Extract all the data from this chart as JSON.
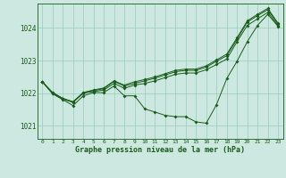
{
  "title": "Graphe pression niveau de la mer (hPa)",
  "background_color": "#cce8e0",
  "grid_color": "#99ccbb",
  "line_color": "#1a5c1a",
  "xlim": [
    -0.5,
    23.5
  ],
  "ylim": [
    1020.6,
    1024.75
  ],
  "yticks": [
    1021,
    1022,
    1023,
    1024
  ],
  "xticks": [
    0,
    1,
    2,
    3,
    4,
    5,
    6,
    7,
    8,
    9,
    10,
    11,
    12,
    13,
    14,
    15,
    16,
    17,
    18,
    19,
    20,
    21,
    22,
    23
  ],
  "line1_x": [
    0,
    1,
    2,
    3,
    4,
    5,
    6,
    7,
    8,
    9,
    10,
    11,
    12,
    13,
    14,
    15,
    16,
    17,
    18,
    19,
    20,
    21,
    22,
    23
  ],
  "line1_y": [
    1022.35,
    1022.0,
    1021.82,
    1021.72,
    1022.0,
    1022.05,
    1022.1,
    1022.3,
    1022.15,
    1022.25,
    1022.3,
    1022.38,
    1022.48,
    1022.58,
    1022.62,
    1022.62,
    1022.72,
    1022.88,
    1023.05,
    1023.58,
    1024.08,
    1024.28,
    1024.48,
    1024.08
  ],
  "line2_x": [
    0,
    1,
    2,
    3,
    4,
    5,
    6,
    7,
    8,
    9,
    10,
    11,
    12,
    13,
    14,
    15,
    16,
    17,
    18,
    19,
    20,
    21,
    22,
    23
  ],
  "line2_y": [
    1022.35,
    1022.02,
    1021.84,
    1021.74,
    1022.02,
    1022.08,
    1022.14,
    1022.36,
    1022.22,
    1022.3,
    1022.38,
    1022.46,
    1022.56,
    1022.66,
    1022.7,
    1022.7,
    1022.8,
    1022.98,
    1023.15,
    1023.65,
    1024.18,
    1024.38,
    1024.56,
    1024.12
  ],
  "line3_x": [
    0,
    1,
    2,
    3,
    4,
    5,
    6,
    7,
    8,
    9,
    10,
    11,
    12,
    13,
    14,
    15,
    16,
    17,
    18,
    19,
    20,
    21,
    22,
    23
  ],
  "line3_y": [
    1022.35,
    1022.02,
    1021.84,
    1021.72,
    1022.02,
    1022.1,
    1022.16,
    1022.38,
    1022.25,
    1022.35,
    1022.42,
    1022.5,
    1022.6,
    1022.7,
    1022.74,
    1022.74,
    1022.84,
    1023.02,
    1023.2,
    1023.7,
    1024.22,
    1024.42,
    1024.6,
    1024.15
  ],
  "line4_x": [
    0,
    1,
    2,
    3,
    4,
    5,
    6,
    7,
    8,
    9,
    10,
    11,
    12,
    13,
    14,
    15,
    16,
    17,
    18,
    19,
    20,
    21,
    22,
    23
  ],
  "line4_y": [
    1022.35,
    1021.98,
    1021.8,
    1021.62,
    1021.92,
    1022.02,
    1022.02,
    1022.22,
    1021.92,
    1021.92,
    1021.52,
    1021.42,
    1021.32,
    1021.28,
    1021.28,
    1021.12,
    1021.08,
    1021.65,
    1022.45,
    1022.98,
    1023.58,
    1024.08,
    1024.42,
    1024.05
  ]
}
